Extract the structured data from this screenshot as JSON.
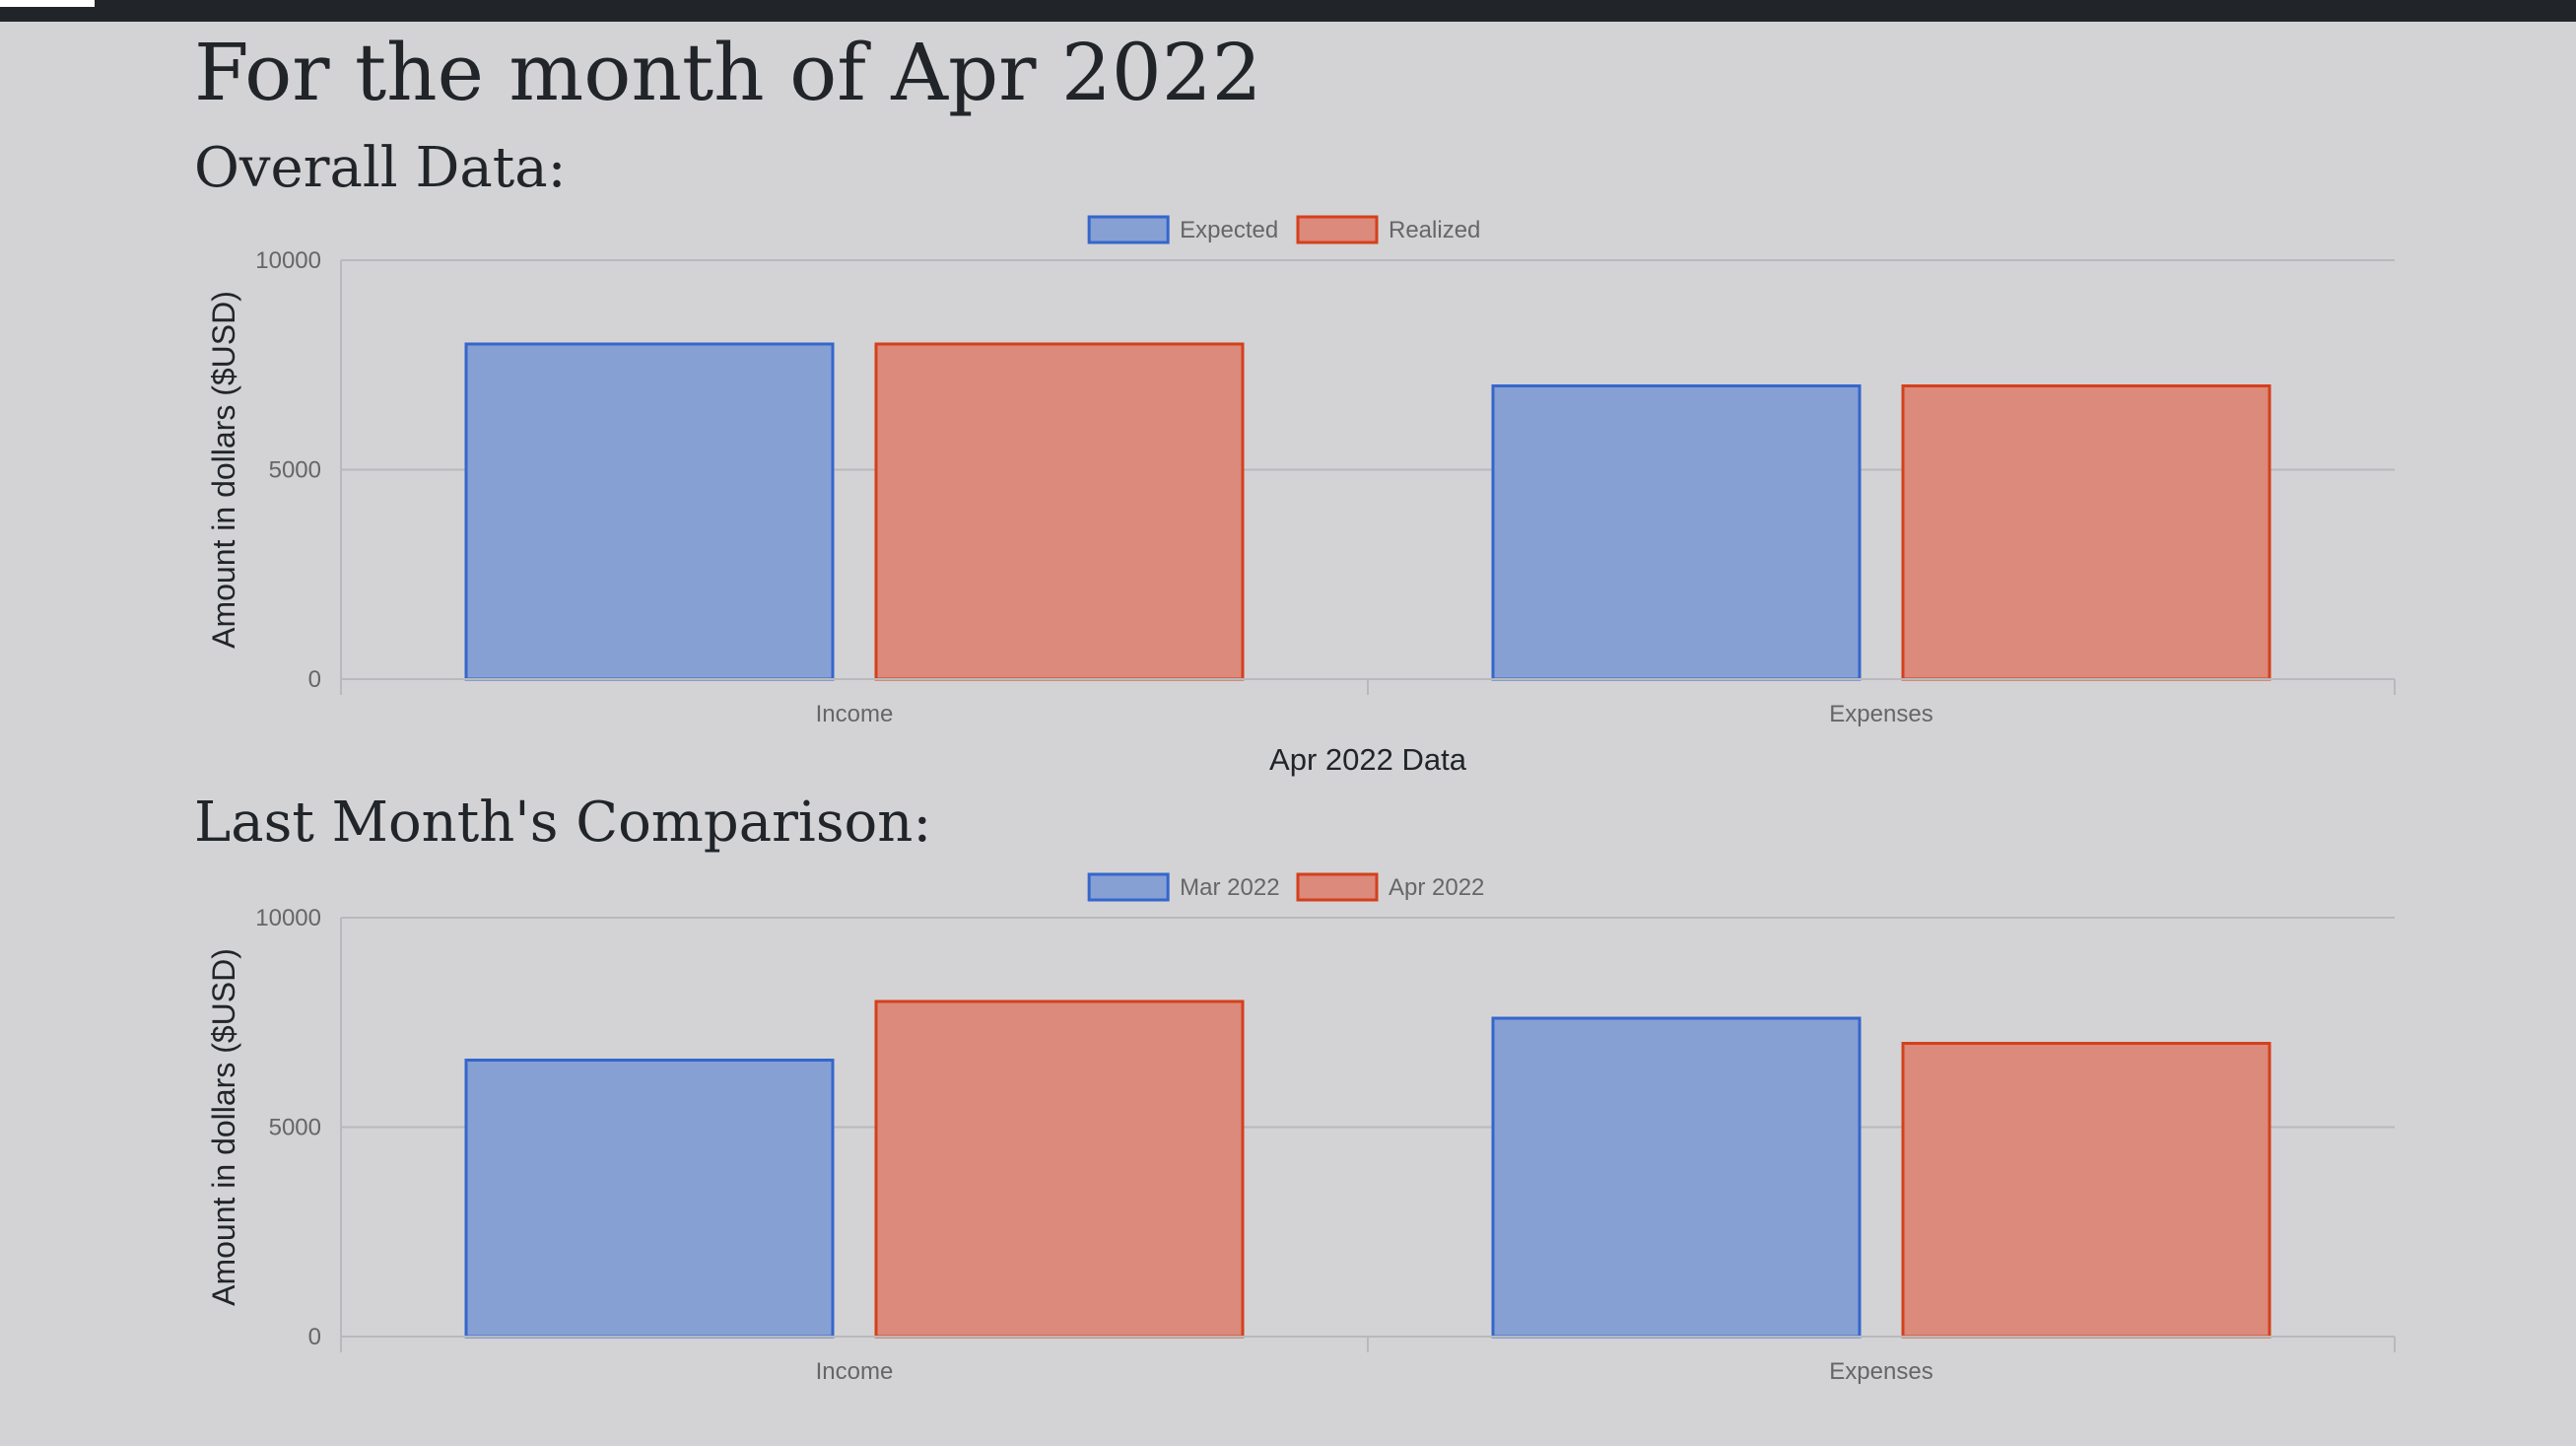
{
  "page": {
    "title": "For the month of Apr 2022",
    "section_overall": "Overall Data:",
    "section_comparison": "Last Month's Comparison:"
  },
  "colors": {
    "blue_fill": "#86a0d4",
    "blue_stroke": "#3566cc",
    "red_fill": "#db8a7b",
    "red_stroke": "#d4401c",
    "grid": "#b9b9bd",
    "axis_text": "#666666",
    "title_text": "#212529"
  },
  "chart_data": [
    {
      "type": "bar",
      "categories": [
        "Income",
        "Expenses"
      ],
      "series": [
        {
          "name": "Expected",
          "values": [
            8000,
            7000
          ]
        },
        {
          "name": "Realized",
          "values": [
            8000,
            7000
          ]
        }
      ],
      "xlabel": "Apr 2022 Data",
      "ylabel": "Amount in dollars ($USD)",
      "ylim": [
        0,
        10000
      ],
      "yticks": [
        "0",
        "5000",
        "10000"
      ],
      "grid": true,
      "legend": "top"
    },
    {
      "type": "bar",
      "categories": [
        "Income",
        "Expenses"
      ],
      "series": [
        {
          "name": "Mar 2022",
          "values": [
            6600,
            7600
          ]
        },
        {
          "name": "Apr 2022",
          "values": [
            8000,
            7000
          ]
        }
      ],
      "xlabel": "",
      "ylabel": "Amount in dollars ($USD)",
      "ylim": [
        0,
        10000
      ],
      "yticks": [
        "0",
        "5000",
        "10000"
      ],
      "grid": true,
      "legend": "top"
    }
  ]
}
